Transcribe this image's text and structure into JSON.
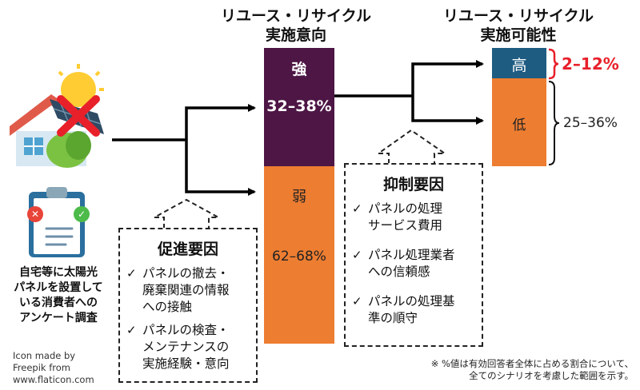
{
  "headers": {
    "intention": [
      "リユース・リサイクル",
      "実施意向"
    ],
    "feasibility": [
      "リユース・リサイクル",
      "実施可能性"
    ]
  },
  "intention_bar": {
    "strong_label": "強",
    "strong_value": "32–38%",
    "weak_label": "弱",
    "weak_value": "62–68%"
  },
  "feasibility_bar": {
    "high_label": "高",
    "high_value": "2–12%",
    "low_label": "低",
    "low_value": "25–36%"
  },
  "survey_label": [
    "自宅等に太陽光",
    "パネルを設置して",
    "いる消費者への",
    "アンケート調査"
  ],
  "promoting": {
    "title": "促進要因",
    "items": [
      [
        "パネルの撤去・",
        "廃棄関連の情報",
        "への接触"
      ],
      [
        "パネルの検査・",
        "メンテナンスの",
        "実施経験・意向"
      ]
    ]
  },
  "inhibiting": {
    "title": "抑制要因",
    "items": [
      [
        "パネルの処理",
        "サービス費用"
      ],
      [
        "パネル処理業者",
        "への信頼感"
      ],
      [
        "パネルの処理基",
        "準の順守"
      ]
    ]
  },
  "credit": [
    "Icon made by",
    "Freepik from",
    "www.flaticon.com"
  ],
  "footnote": [
    "※ %値は有効回答者全体に占める割合について、",
    "全てのシナリオを考慮した範囲を示す。"
  ],
  "check_glyph": "✓",
  "colors": {
    "purple": "#4d1645",
    "orange": "#ed7d31",
    "teal": "#1f5c82",
    "red": "#e8202a"
  }
}
